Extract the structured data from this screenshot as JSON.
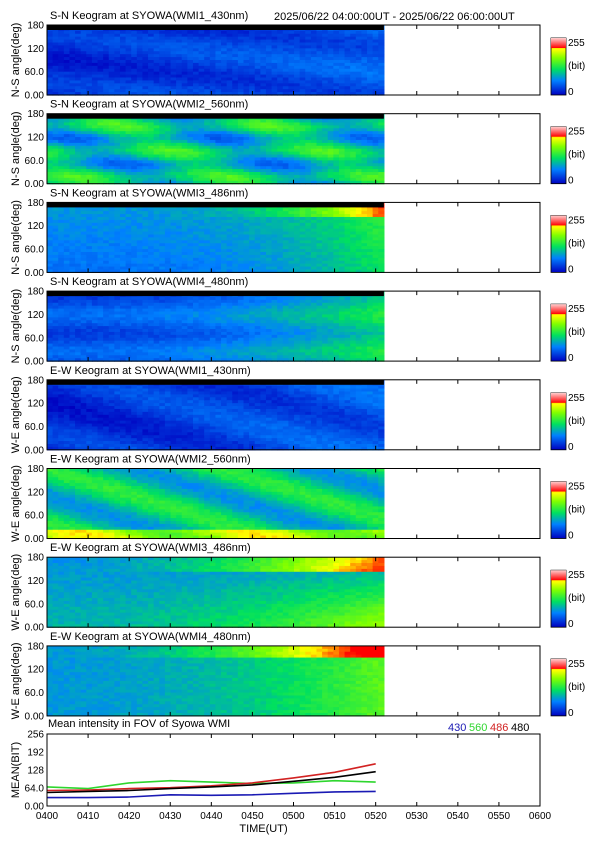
{
  "header": {
    "time_range": "2025/06/22 04:00:00UT - 2025/06/22 06:00:00UT"
  },
  "colorbar": {
    "max_label": "255",
    "unit_label": "(bit)",
    "min_label": "0"
  },
  "chart_data": [
    {
      "type": "heatmap",
      "title": "S-N Keogram at SYOWA(WMI1_430nm)",
      "ylabel": "N-S angle(deg)",
      "yticks": [
        "180",
        "120",
        "60.0",
        "0.00"
      ],
      "ylim": [
        0,
        180
      ],
      "data_end": "05:22",
      "colormap": "blue-green-yellow-red",
      "zlim": [
        0,
        255
      ],
      "top_band_black": true
    },
    {
      "type": "heatmap",
      "title": "S-N Keogram at SYOWA(WMI2_560nm)",
      "ylabel": "N-S angle(deg)",
      "yticks": [
        "180",
        "120",
        "60.0",
        "0.00"
      ],
      "ylim": [
        0,
        180
      ],
      "data_end": "05:22",
      "colormap": "blue-green-yellow-red",
      "zlim": [
        0,
        255
      ],
      "top_band_black": true
    },
    {
      "type": "heatmap",
      "title": "S-N Keogram at SYOWA(WMI3_486nm)",
      "ylabel": "N-S angle(deg)",
      "yticks": [
        "180",
        "120",
        "60.0",
        "0.00"
      ],
      "ylim": [
        0,
        180
      ],
      "data_end": "05:22",
      "colormap": "blue-green-yellow-red",
      "zlim": [
        0,
        255
      ],
      "top_band_black": true
    },
    {
      "type": "heatmap",
      "title": "S-N Keogram at SYOWA(WMI4_480nm)",
      "ylabel": "N-S angle(deg)",
      "yticks": [
        "180",
        "120",
        "60.0",
        "0.00"
      ],
      "ylim": [
        0,
        180
      ],
      "data_end": "05:22",
      "colormap": "blue-green-yellow-red",
      "zlim": [
        0,
        255
      ],
      "top_band_black": true
    },
    {
      "type": "heatmap",
      "title": "E-W Keogram at SYOWA(WMI1_430nm)",
      "ylabel": "W-E angle(deg)",
      "yticks": [
        "180",
        "120",
        "60.0",
        "0.00"
      ],
      "ylim": [
        0,
        180
      ],
      "data_end": "05:22",
      "colormap": "blue-green-yellow-red",
      "zlim": [
        0,
        255
      ],
      "top_band_black": true
    },
    {
      "type": "heatmap",
      "title": "E-W Keogram at SYOWA(WMI2_560nm)",
      "ylabel": "W-E angle(deg)",
      "yticks": [
        "180",
        "120",
        "60.0",
        "0.00"
      ],
      "ylim": [
        0,
        180
      ],
      "data_end": "05:22",
      "colormap": "blue-green-yellow-red",
      "zlim": [
        0,
        255
      ],
      "top_band_black": false
    },
    {
      "type": "heatmap",
      "title": "E-W Keogram at SYOWA(WMI3_486nm)",
      "ylabel": "W-E angle(deg)",
      "yticks": [
        "180",
        "120",
        "60.0",
        "0.00"
      ],
      "ylim": [
        0,
        180
      ],
      "data_end": "05:22",
      "colormap": "blue-green-yellow-red",
      "zlim": [
        0,
        255
      ],
      "top_band_black": false
    },
    {
      "type": "heatmap",
      "title": "E-W Keogram at SYOWA(WMI4_480nm)",
      "ylabel": "W-E angle(deg)",
      "yticks": [
        "180",
        "120",
        "60.0",
        "0.00"
      ],
      "ylim": [
        0,
        180
      ],
      "data_end": "05:22",
      "colormap": "blue-green-yellow-red",
      "zlim": [
        0,
        255
      ],
      "top_band_black": false
    },
    {
      "type": "line",
      "title": "Mean intensity in FOV of Syowa WMI",
      "xlabel": "TIME(UT)",
      "ylabel": "MEAN(BIT)",
      "ylim": [
        0,
        256
      ],
      "yticks": [
        "256",
        "192",
        "128",
        "64.0",
        "0.00"
      ],
      "x": [
        "04:00",
        "04:10",
        "04:20",
        "04:30",
        "04:40",
        "04:50",
        "05:00",
        "05:10",
        "05:20"
      ],
      "series": [
        {
          "name": "430",
          "color": "#1a1ab4",
          "values": [
            30,
            30,
            32,
            40,
            38,
            40,
            45,
            50,
            52
          ]
        },
        {
          "name": "560",
          "color": "#2ed62e",
          "values": [
            68,
            62,
            82,
            90,
            85,
            80,
            82,
            90,
            85
          ]
        },
        {
          "name": "486",
          "color": "#d22222",
          "values": [
            55,
            57,
            62,
            65,
            72,
            82,
            100,
            120,
            150
          ]
        },
        {
          "name": "480",
          "color": "#000000",
          "values": [
            48,
            52,
            55,
            62,
            68,
            75,
            88,
            102,
            122
          ]
        }
      ]
    }
  ],
  "time_axis": {
    "xlim": [
      "04:00",
      "06:00"
    ],
    "ticks": [
      "0400",
      "0410",
      "0420",
      "0430",
      "0440",
      "0450",
      "0500",
      "0510",
      "0520",
      "0530",
      "0540",
      "0550",
      "0600"
    ],
    "xlabel": "TIME(UT)"
  }
}
